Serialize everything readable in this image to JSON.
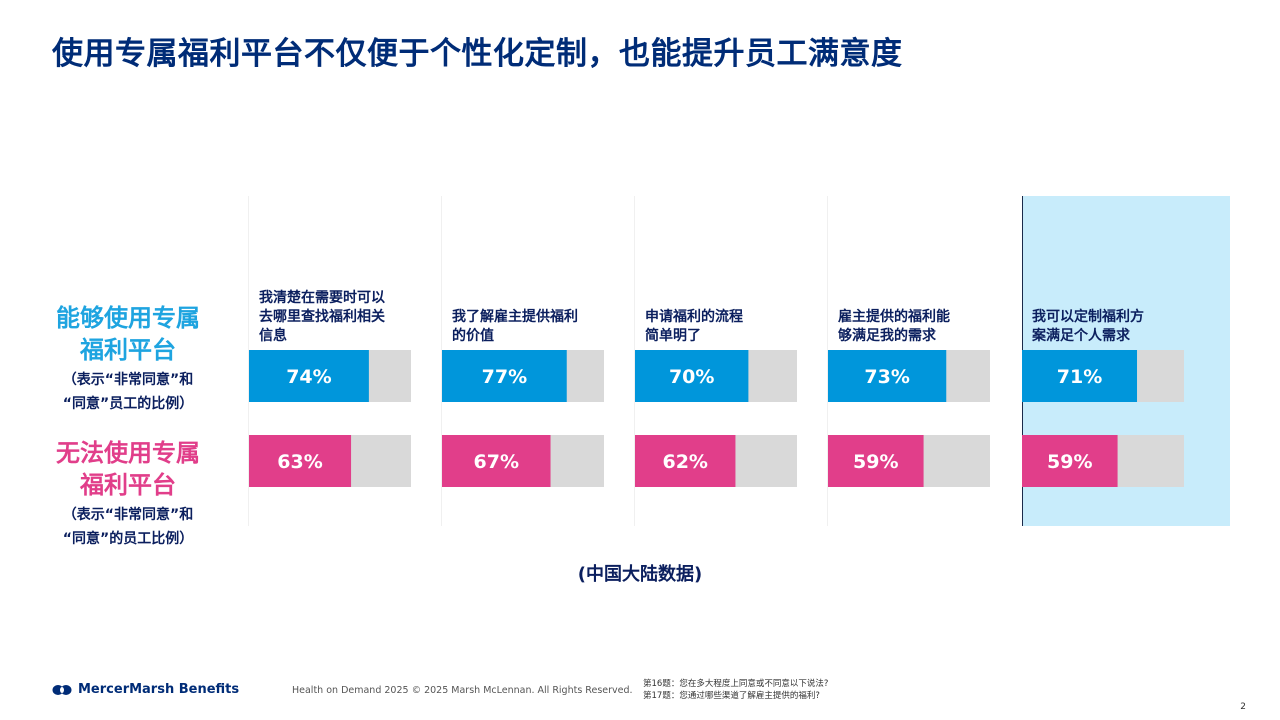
{
  "title": "使用专属福利平台不仅便于个性化定制，也能提升员工满意度",
  "rows": {
    "a": {
      "label_line1": "能够使用专属",
      "label_line2": "福利平台",
      "note_line1": "（表示“非常同意”和",
      "note_line2": "“同意”员工的比例）"
    },
    "b": {
      "label_line1": "无法使用专属",
      "label_line2": "福利平台",
      "note_line1": "（表示“非常同意”和",
      "note_line2": "“同意”的员工比例）"
    }
  },
  "subnote": "(中国大陆数据)",
  "footer": {
    "brand": "MercerMarsh Benefits",
    "copyright": "Health on Demand 2025 © 2025 Marsh McLennan. All Rights Reserved.",
    "note_line1": "第16题：您在多大程度上同意或不同意以下说法?",
    "note_line2": "第17题：您通过哪些渠道了解雇主提供的福利?",
    "page": "2"
  },
  "colors": {
    "series_a": "#0096db",
    "series_b": "#e13e8a",
    "track": "#d9d9d9",
    "highlight_bg": "#c8ecfb",
    "title": "#002c77"
  },
  "chart_data": {
    "type": "bar",
    "orientation": "horizontal",
    "categories": [
      [
        "我清楚在需要时可以",
        "去哪里查找福利相关",
        "信息"
      ],
      [
        "我了解雇主提供福利",
        "的价值"
      ],
      [
        "申请福利的流程",
        "简单明了"
      ],
      [
        "雇主提供的福利能",
        "够满足我的需求"
      ],
      [
        "我可以定制福利方",
        "案满足个人需求"
      ]
    ],
    "series": [
      {
        "name": "能够使用专属福利平台",
        "values": [
          74,
          77,
          70,
          73,
          71
        ]
      },
      {
        "name": "无法使用专属福利平台",
        "values": [
          63,
          67,
          62,
          59,
          59
        ]
      }
    ],
    "value_suffix": "%",
    "xlim": [
      0,
      100
    ],
    "highlight_category_index": 4
  }
}
